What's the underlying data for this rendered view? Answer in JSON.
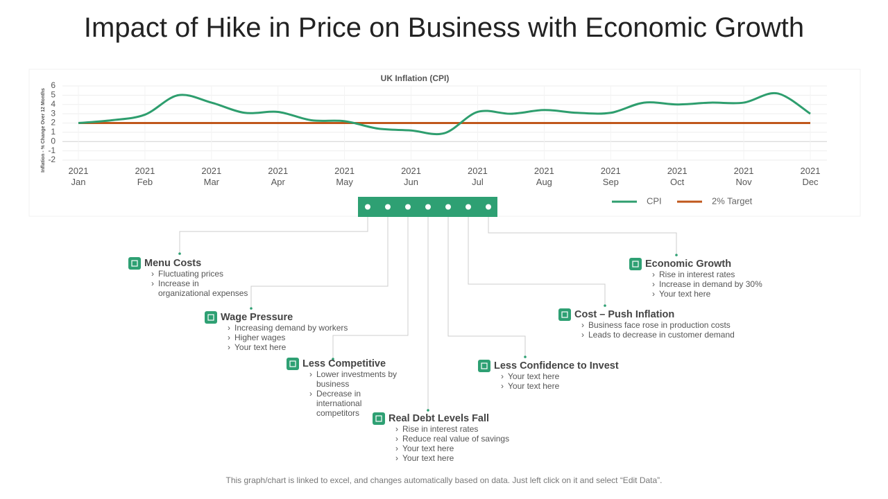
{
  "title": "Impact of Hike in Price on Business with Economic Growth",
  "chart_data": {
    "type": "line",
    "title": "UK Inflation (CPI)",
    "y_label": "Inflation - % Change Over 12 Months",
    "categories": [
      "2021\nJan",
      null,
      "2021\nFeb",
      null,
      "2021\nMar",
      null,
      "2021\nApr",
      null,
      "2021\nMay",
      null,
      "2021\nJun",
      null,
      "2021\nJul",
      null,
      "2021\nAug",
      null,
      "2021\nSep",
      null,
      "2021\nOct",
      null,
      "2021\nNov",
      null,
      "2021\nDec"
    ],
    "series": [
      {
        "name": "CPI",
        "color": "#2e9e6e",
        "values": [
          2.0,
          2.3,
          2.9,
          5.0,
          4.2,
          3.1,
          3.2,
          2.3,
          2.2,
          1.4,
          1.2,
          0.9,
          3.2,
          3.0,
          3.4,
          3.1,
          3.1,
          4.2,
          4.0,
          4.2,
          4.2,
          5.2,
          3.0
        ]
      },
      {
        "name": "2% Target",
        "color": "#c0571b",
        "values": [
          2,
          2,
          2,
          2,
          2,
          2,
          2,
          2,
          2,
          2,
          2,
          2,
          2,
          2,
          2,
          2,
          2,
          2,
          2,
          2,
          2,
          2,
          2
        ]
      }
    ],
    "ylim": [
      -2,
      6
    ],
    "yticks": [
      -2,
      -1,
      0,
      1,
      2,
      3,
      4,
      5,
      6
    ],
    "grid": true,
    "legend": "bottom-right"
  },
  "items": [
    {
      "title": "Menu Costs",
      "bullets": [
        "Fluctuating prices",
        "Increase in organizational expenses"
      ]
    },
    {
      "title": "Wage Pressure",
      "bullets": [
        "Increasing demand by workers",
        "Higher wages",
        "Your text here"
      ]
    },
    {
      "title": "Less Competitive",
      "bullets": [
        "Lower investments by business",
        "Decrease in international competitors"
      ]
    },
    {
      "title": "Real Debt Levels Fall",
      "bullets": [
        "Rise in interest rates",
        "Reduce real value of savings",
        "Your text here",
        "Your text here"
      ]
    },
    {
      "title": "Less Confidence to Invest",
      "bullets": [
        "Your text here",
        "Your text here"
      ]
    },
    {
      "title": "Cost – Push Inflation",
      "bullets": [
        "Business face rose in production costs",
        "Leads to decrease in customer demand"
      ]
    },
    {
      "title": "Economic Growth",
      "bullets": [
        "Rise in interest rates",
        "Increase in demand  by 30%",
        "Your text here"
      ]
    }
  ],
  "footer": "This graph/chart is linked to excel, and changes automatically based on data. Just left click on it and select “Edit Data”."
}
